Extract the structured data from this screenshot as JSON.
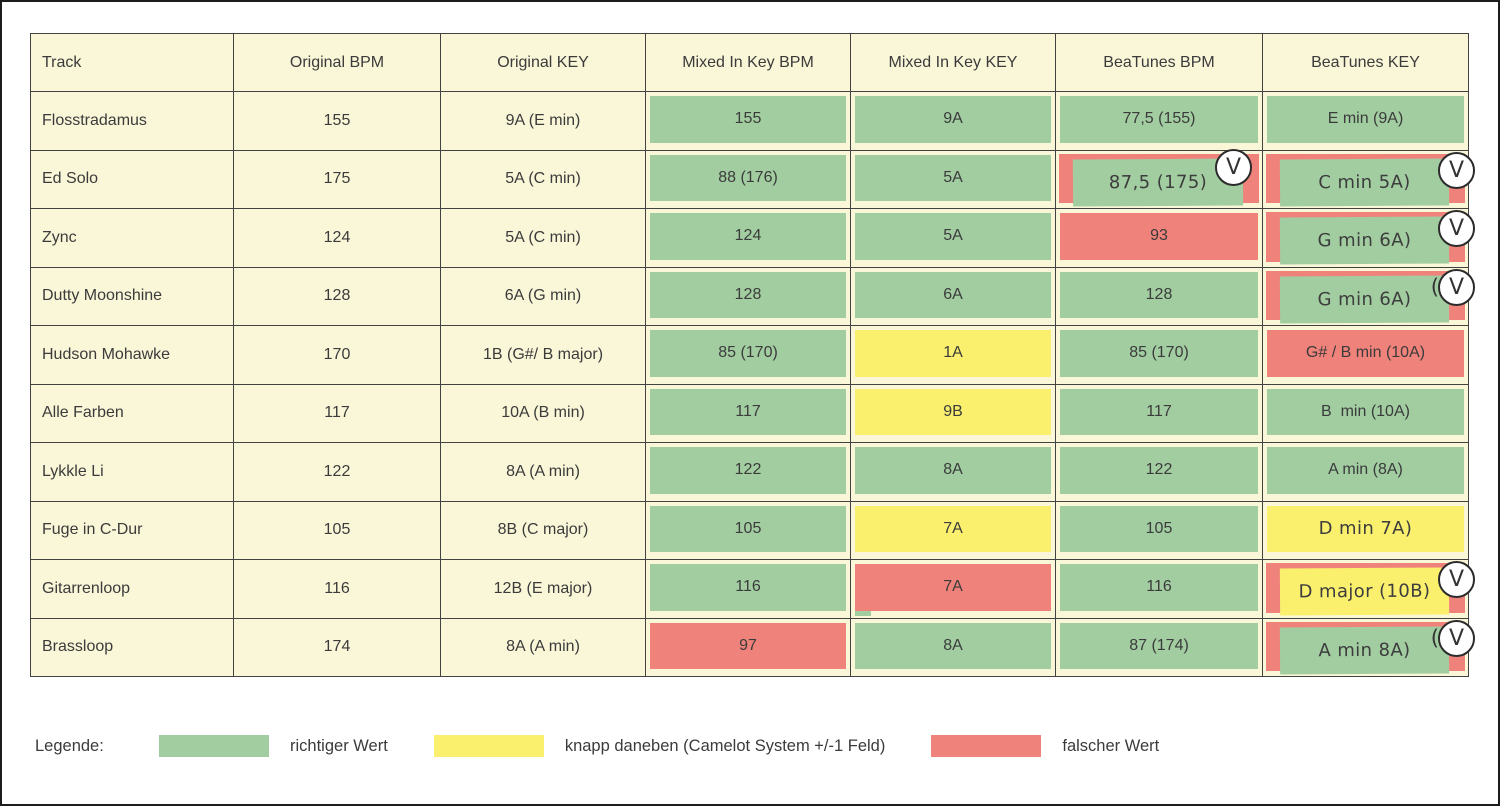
{
  "colors": {
    "green": "#A2CDA1",
    "yellow": "#FAF06E",
    "red": "#EF837B",
    "cell_bg": "#FAF6D8",
    "border": "#424242",
    "text": "#3B3B3B"
  },
  "chart_data": {
    "type": "table",
    "columns": [
      "Track",
      "Original BPM",
      "Original KEY",
      "Mixed In Key BPM",
      "Mixed In Key KEY",
      "BeaTunes BPM",
      "BeaTunes KEY"
    ],
    "rows": [
      {
        "track": "Flosstradamus",
        "original_bpm": "155",
        "original_key": "9A (E min)",
        "mik_bpm": {
          "text": "155",
          "status": "green"
        },
        "mik_key": {
          "text": "9A",
          "status": "green"
        },
        "bt_bpm": {
          "text": "77,5 (155)",
          "status": "green"
        },
        "bt_key": {
          "text": "E min (9A)",
          "status": "green"
        }
      },
      {
        "track": "Ed Solo",
        "original_bpm": "175",
        "original_key": "5A (C min)",
        "mik_bpm": {
          "text": "88 (176)",
          "status": "green"
        },
        "mik_key": {
          "text": "5A",
          "status": "green"
        },
        "bt_bpm": {
          "text": "87,5 (175)",
          "status": "green",
          "base": "red",
          "badge": "V"
        },
        "bt_key": {
          "text": "C min 5A)",
          "status": "green",
          "base": "red",
          "badge": "V"
        }
      },
      {
        "track": "Zync",
        "original_bpm": "124",
        "original_key": "5A (C min)",
        "mik_bpm": {
          "text": "124",
          "status": "green"
        },
        "mik_key": {
          "text": "5A",
          "status": "green"
        },
        "bt_bpm": {
          "text": "93",
          "status": "red"
        },
        "bt_key": {
          "text": "G min 6A)",
          "status": "green",
          "base": "red",
          "badge": "V"
        }
      },
      {
        "track": "Dutty Moonshine",
        "original_bpm": "128",
        "original_key": "6A (G min)",
        "mik_bpm": {
          "text": "128",
          "status": "green"
        },
        "mik_key": {
          "text": "6A",
          "status": "green"
        },
        "bt_bpm": {
          "text": "128",
          "status": "green"
        },
        "bt_key": {
          "text": "G min 6A)",
          "status": "green",
          "base": "red",
          "badge": "V",
          "badge_prefix": "("
        }
      },
      {
        "track": "Hudson Mohawke",
        "original_bpm": "170",
        "original_key": "1B (G#/ B major)",
        "mik_bpm": {
          "text": "85 (170)",
          "status": "green"
        },
        "mik_key": {
          "text": "1A",
          "status": "yellow"
        },
        "bt_bpm": {
          "text": "85 (170)",
          "status": "green"
        },
        "bt_key": {
          "text": "G# / B min (10A)",
          "status": "red"
        }
      },
      {
        "track": "Alle Farben",
        "original_bpm": "117",
        "original_key": "10A (B min)",
        "mik_bpm": {
          "text": "117",
          "status": "green"
        },
        "mik_key": {
          "text": "9B",
          "status": "yellow"
        },
        "bt_bpm": {
          "text": "117",
          "status": "green"
        },
        "bt_key": {
          "text": "B  min (10A)",
          "status": "green"
        }
      },
      {
        "track": "Lykkle Li",
        "original_bpm": "122",
        "original_key": "8A (A min)",
        "mik_bpm": {
          "text": "122",
          "status": "green"
        },
        "mik_key": {
          "text": "8A",
          "status": "green"
        },
        "bt_bpm": {
          "text": "122",
          "status": "green"
        },
        "bt_key": {
          "text": "A min (8A)",
          "status": "green"
        }
      },
      {
        "track": "Fuge in C-Dur",
        "original_bpm": "105",
        "original_key": "8B (C major)",
        "mik_bpm": {
          "text": "105",
          "status": "green"
        },
        "mik_key": {
          "text": "7A",
          "status": "yellow"
        },
        "bt_bpm": {
          "text": "105",
          "status": "green"
        },
        "bt_key": {
          "text": "D min 7A)",
          "status": "yellow",
          "alt_font": true
        }
      },
      {
        "track": "Gitarrenloop",
        "original_bpm": "116",
        "original_key": "12B (E major)",
        "mik_bpm": {
          "text": "116",
          "status": "green"
        },
        "mik_key": {
          "text": "7A",
          "status": "red",
          "notch": "green"
        },
        "bt_bpm": {
          "text": "116",
          "status": "green"
        },
        "bt_key": {
          "text": "D major (10B)",
          "status": "yellow",
          "base": "red",
          "badge": "V"
        }
      },
      {
        "track": "Brassloop",
        "original_bpm": "174",
        "original_key": "8A (A min)",
        "mik_bpm": {
          "text": "97",
          "status": "red"
        },
        "mik_key": {
          "text": "8A",
          "status": "green"
        },
        "bt_bpm": {
          "text": "87 (174)",
          "status": "green"
        },
        "bt_key": {
          "text": "A min 8A)",
          "status": "green",
          "base": "red",
          "badge": "V",
          "badge_prefix": "("
        }
      }
    ]
  },
  "legend": {
    "label": "Legende:",
    "items": [
      {
        "color": "green",
        "text": "richtiger Wert"
      },
      {
        "color": "yellow",
        "text": "knapp daneben (Camelot System +/-1 Feld)"
      },
      {
        "color": "red",
        "text": "falscher Wert"
      }
    ]
  }
}
